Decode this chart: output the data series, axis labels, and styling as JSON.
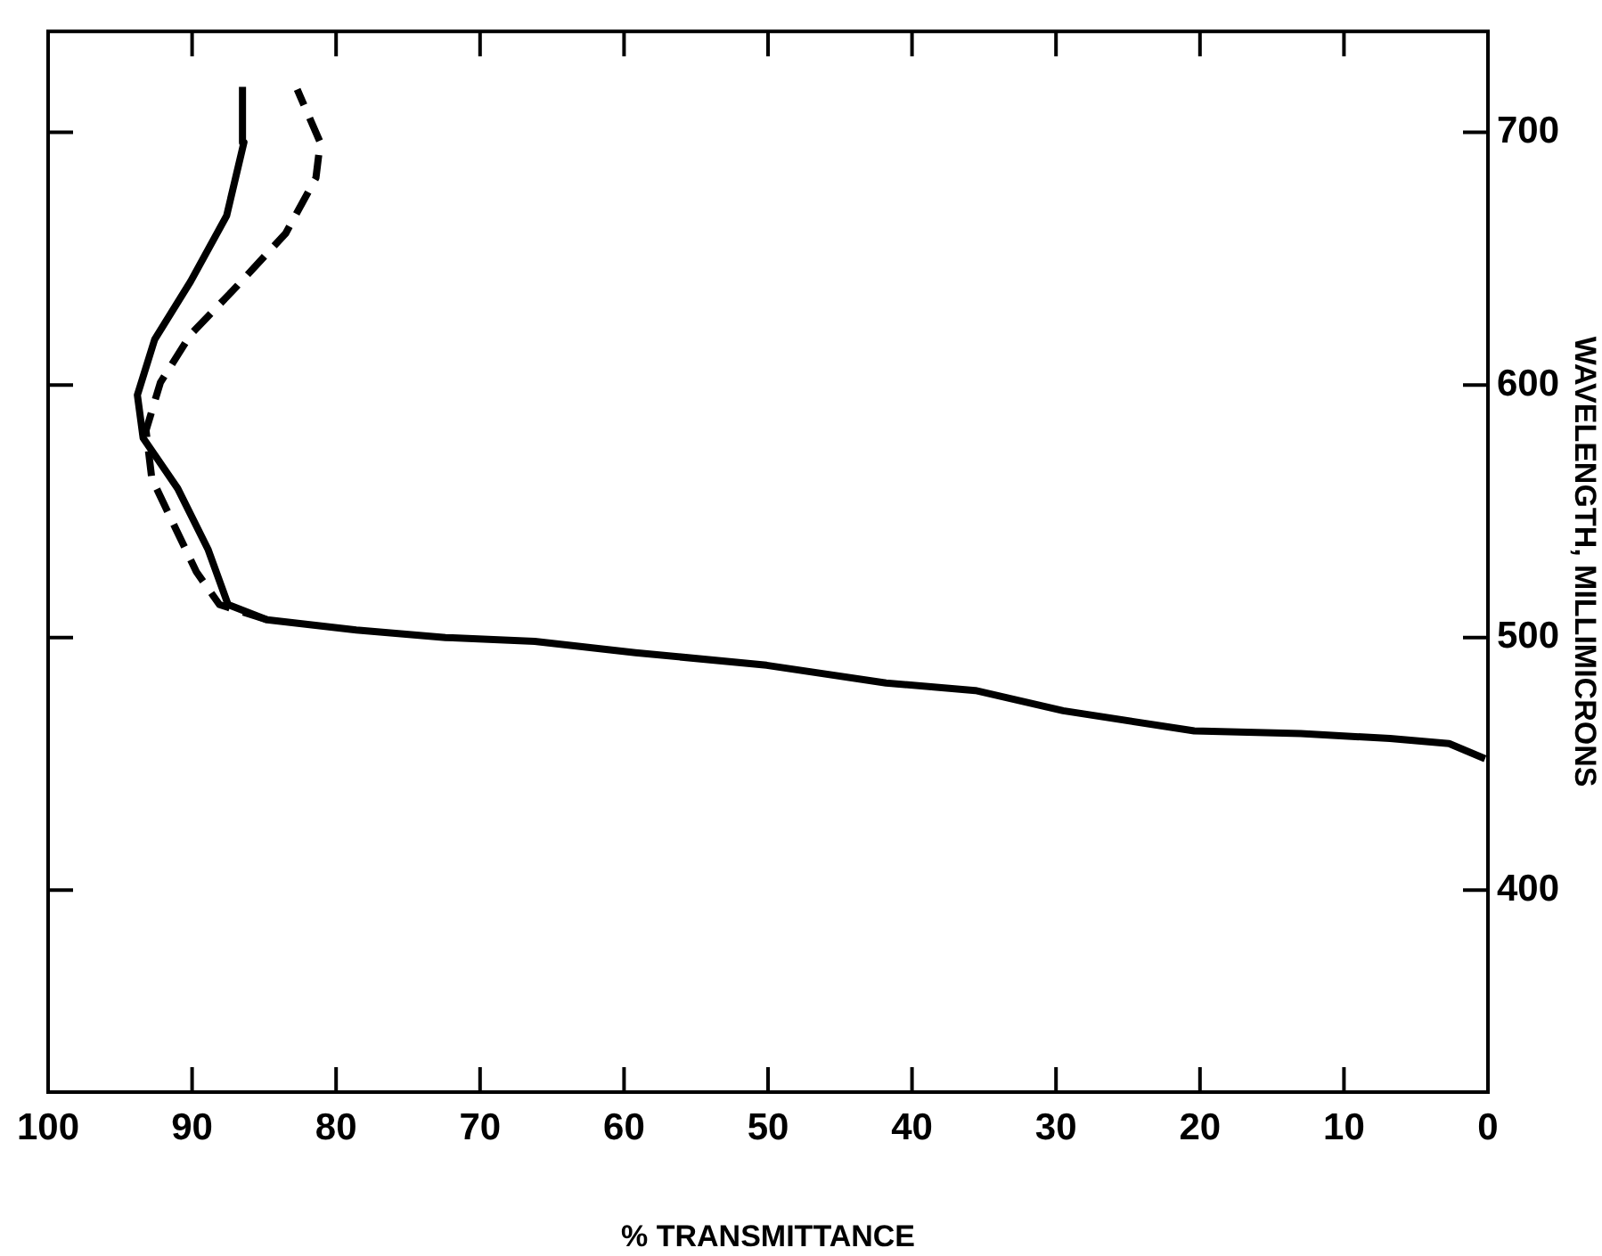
{
  "chart_data": {
    "type": "line",
    "xlabel": "% TRANSMITTANCE",
    "ylabel": "WAVELENGTH, MILLIMICRONS",
    "xlim": [
      100,
      0
    ],
    "xticks": [
      100,
      90,
      80,
      70,
      60,
      50,
      40,
      30,
      20,
      10,
      0
    ],
    "ylim": [
      320,
      740
    ],
    "yticks": [
      400,
      500,
      600,
      700
    ],
    "grid": false,
    "legend": false,
    "marker": "none",
    "series": [
      {
        "color": "#000000",
        "line_style": "solid",
        "x": [
          0.2,
          2.7,
          6.8,
          13,
          20.4,
          29.5,
          35.6,
          41.8,
          50.1,
          59.2,
          66.2,
          72.4,
          78.6,
          84.8,
          87.5,
          88.9,
          91,
          93.4,
          93.8,
          92.6,
          90.1,
          87.6,
          86.4,
          86.5
        ],
        "values": [
          452,
          458,
          460,
          462,
          463,
          471,
          479,
          482,
          489,
          494,
          498.5,
          500,
          503,
          507,
          513,
          535,
          559,
          579,
          596,
          618,
          641,
          667,
          696,
          718
        ]
      },
      {
        "color": "#000000",
        "line_style": "dashed",
        "x": [
          84.8,
          88.1,
          89.7,
          91.3,
          92.8,
          93.2,
          92.2,
          90.1,
          86.9,
          83.5,
          81.4,
          81.1,
          82.7
        ],
        "values": [
          507,
          513,
          526,
          545,
          563,
          582,
          601,
          620,
          639,
          660,
          682,
          696,
          717
        ]
      }
    ]
  }
}
